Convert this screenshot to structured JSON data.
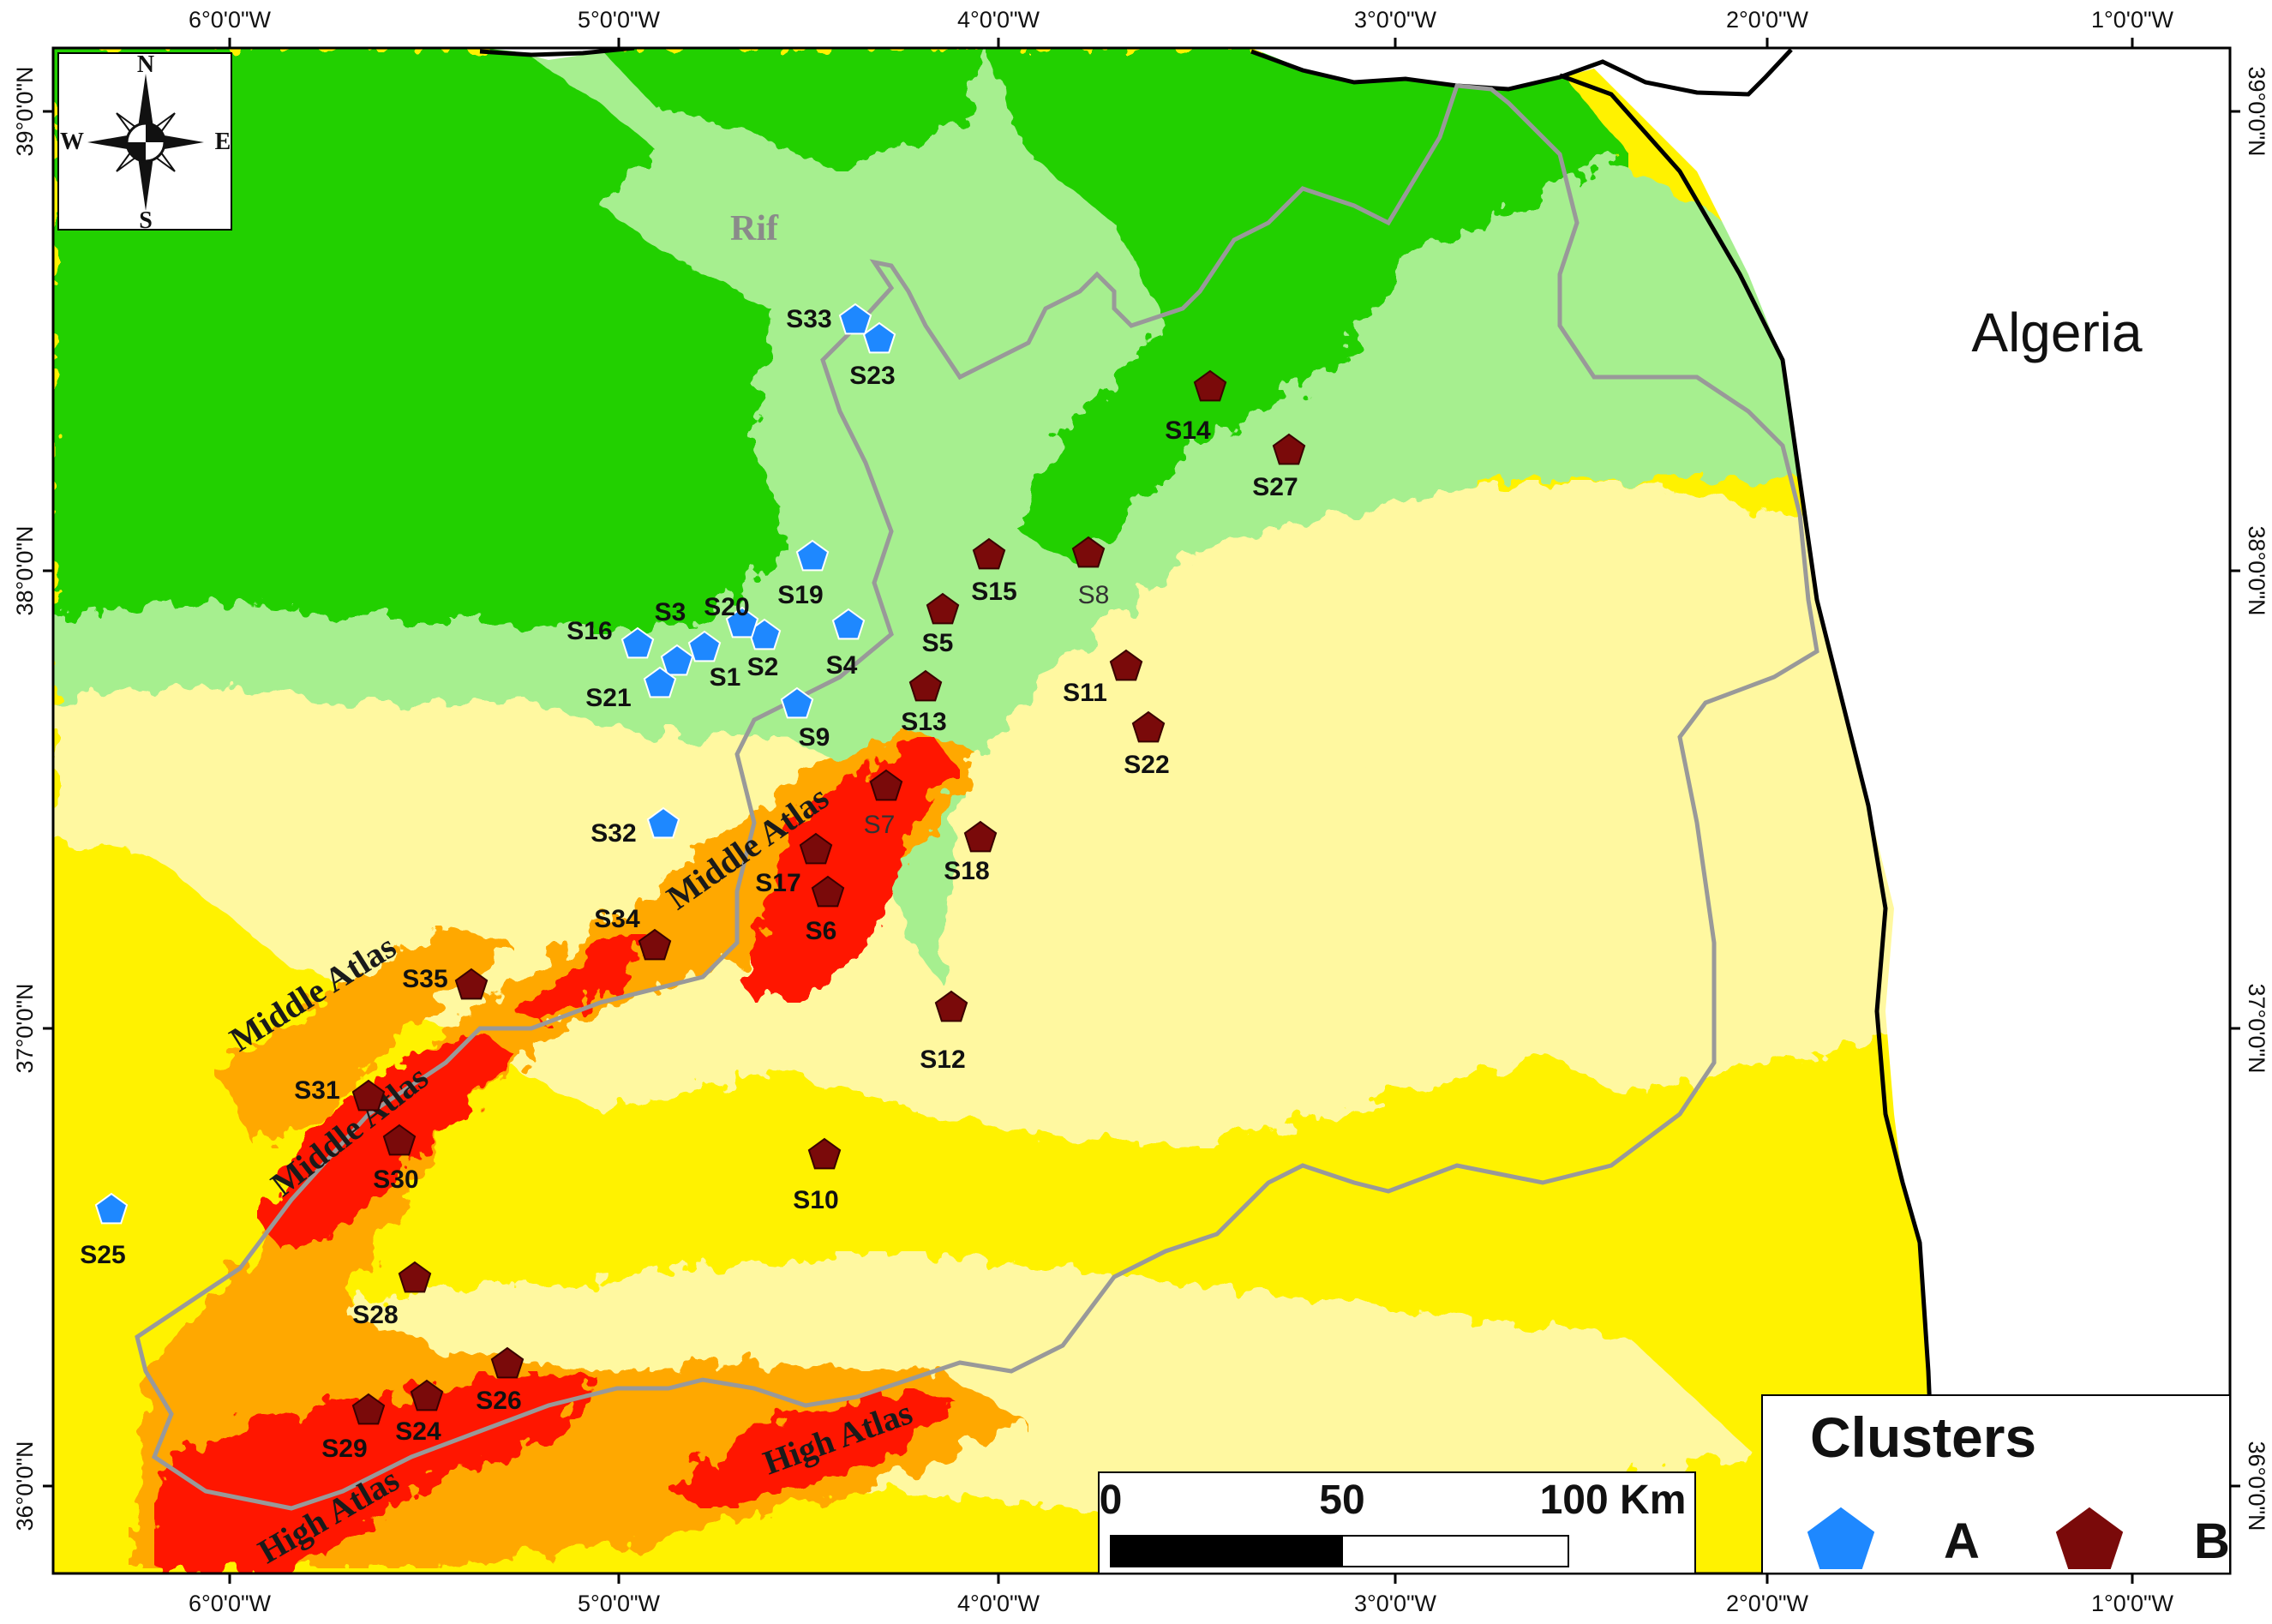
{
  "map": {
    "country_label": "Algeria",
    "rif_label": "Rif",
    "region_labels": [
      "Middle Atlas",
      "Middle Atlas",
      "Middle Atlas",
      "High Atlas",
      "High Atlas"
    ],
    "lon_ticks": [
      "6°0'0\"W",
      "5°0'0\"W",
      "4°0'0\"W",
      "3°0'0\"W",
      "2°0'0\"W",
      "1°0'0\"W"
    ],
    "lat_ticks": [
      "39°0'0\"N",
      "38°0'0\"N",
      "37°0'0\"N",
      "36°0'0\"N"
    ],
    "colors": {
      "dark_green": "#22d000",
      "light_green": "#a6ef8f",
      "pale_yellow": "#fff8a0",
      "yellow": "#fff200",
      "orange": "#ffa800",
      "red": "#ff1400",
      "border": "#999999",
      "coast": "#000000"
    }
  },
  "compass": {
    "n": "N",
    "s": "S",
    "e": "E",
    "w": "W"
  },
  "legend": {
    "title": "Clusters",
    "items": [
      {
        "key": "A",
        "color": "#1e88ff",
        "shape": "pentagon"
      },
      {
        "key": "B",
        "color": "#7a0a0a",
        "shape": "pentagon"
      }
    ]
  },
  "scale_bar": {
    "labels": [
      "0",
      "50",
      "100 Km"
    ]
  },
  "sites": [
    {
      "id": "S1",
      "cluster": "A"
    },
    {
      "id": "S2",
      "cluster": "A"
    },
    {
      "id": "S3",
      "cluster": "A"
    },
    {
      "id": "S4",
      "cluster": "A"
    },
    {
      "id": "S5",
      "cluster": "B"
    },
    {
      "id": "S6",
      "cluster": "B"
    },
    {
      "id": "S7",
      "cluster": "B"
    },
    {
      "id": "S8",
      "cluster": "B"
    },
    {
      "id": "S9",
      "cluster": "A"
    },
    {
      "id": "S10",
      "cluster": "B"
    },
    {
      "id": "S11",
      "cluster": "B"
    },
    {
      "id": "S12",
      "cluster": "B"
    },
    {
      "id": "S13",
      "cluster": "B"
    },
    {
      "id": "S14",
      "cluster": "B"
    },
    {
      "id": "S15",
      "cluster": "B"
    },
    {
      "id": "S16",
      "cluster": "A"
    },
    {
      "id": "S17",
      "cluster": "B"
    },
    {
      "id": "S18",
      "cluster": "B"
    },
    {
      "id": "S19",
      "cluster": "A"
    },
    {
      "id": "S20",
      "cluster": "A"
    },
    {
      "id": "S21",
      "cluster": "A"
    },
    {
      "id": "S22",
      "cluster": "B"
    },
    {
      "id": "S23",
      "cluster": "A"
    },
    {
      "id": "S24",
      "cluster": "B"
    },
    {
      "id": "S25",
      "cluster": "A"
    },
    {
      "id": "S26",
      "cluster": "B"
    },
    {
      "id": "S27",
      "cluster": "B"
    },
    {
      "id": "S28",
      "cluster": "B"
    },
    {
      "id": "S29",
      "cluster": "B"
    },
    {
      "id": "S30",
      "cluster": "B"
    },
    {
      "id": "S31",
      "cluster": "B"
    },
    {
      "id": "S32",
      "cluster": "A"
    },
    {
      "id": "S33",
      "cluster": "A"
    },
    {
      "id": "S34",
      "cluster": "B"
    },
    {
      "id": "S35",
      "cluster": "B"
    }
  ]
}
